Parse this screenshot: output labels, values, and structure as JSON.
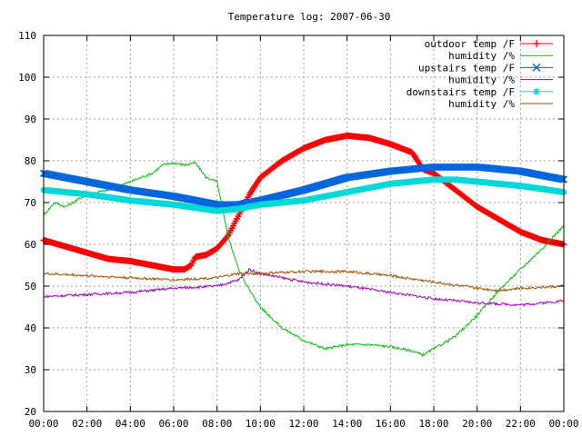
{
  "chart_data": {
    "type": "line",
    "title": "Temperature log: 2007-06-30",
    "xlabel": "",
    "ylabel": "",
    "ylim": [
      20,
      110
    ],
    "xlim_hours": [
      0,
      24
    ],
    "grid": true,
    "legend_position": "top-right",
    "y_ticks": [
      "20",
      "30",
      "40",
      "50",
      "60",
      "70",
      "80",
      "90",
      "100",
      "110"
    ],
    "x_ticks": [
      "00:00",
      "02:00",
      "04:00",
      "06:00",
      "08:00",
      "10:00",
      "12:00",
      "14:00",
      "16:00",
      "18:00",
      "20:00",
      "22:00",
      "00:00"
    ],
    "series": [
      {
        "name": "outdoor temp /F",
        "color": "#ff0000",
        "marker": "plus",
        "x": [
          0,
          1,
          2,
          3,
          4,
          5,
          6,
          6.5,
          6.8,
          7,
          7.5,
          8,
          8.5,
          9,
          9.5,
          10,
          11,
          12,
          13,
          14,
          15,
          16,
          17,
          17.5,
          18,
          19,
          20,
          21,
          22,
          23,
          24
        ],
        "y": [
          61,
          59.5,
          58,
          56.5,
          56,
          55,
          54,
          54,
          55,
          57,
          57.5,
          59,
          62,
          67,
          72,
          76,
          80,
          83,
          85,
          86,
          85.5,
          84,
          82,
          78,
          77,
          73,
          69,
          66,
          63,
          61,
          60
        ]
      },
      {
        "name": "humidity /%",
        "color": "#00c000",
        "marker": "none",
        "x": [
          0,
          0.5,
          1,
          2,
          3,
          4,
          5,
          5.5,
          6,
          6.5,
          7,
          7.5,
          8,
          8.5,
          9,
          9.5,
          10,
          11,
          12,
          13,
          14,
          15,
          16,
          17,
          17.5,
          18,
          19,
          20,
          21,
          22,
          23,
          24
        ],
        "y": [
          67,
          70,
          69,
          72,
          73,
          75,
          77,
          79,
          79.5,
          79,
          79.5,
          76,
          75,
          62,
          54,
          49,
          45,
          40,
          37,
          35,
          36,
          36,
          35.5,
          34.5,
          33.5,
          35,
          38,
          43,
          49,
          54,
          59,
          64.5
        ]
      },
      {
        "name": "upstairs temp /F",
        "color": "#0066dd",
        "marker": "cross",
        "x": [
          0,
          2,
          4,
          6,
          8,
          9,
          10,
          12,
          14,
          16,
          18,
          20,
          22,
          24
        ],
        "y": [
          77,
          75,
          73,
          71.5,
          69.5,
          69.5,
          70.5,
          73,
          76,
          77.5,
          78.5,
          78.5,
          77.5,
          75.5
        ]
      },
      {
        "name": "humidity /%",
        "color": "#a000c0",
        "marker": "none",
        "x": [
          0,
          2,
          4,
          6,
          8,
          9,
          9.5,
          10,
          12,
          14,
          16,
          18,
          20,
          22,
          24
        ],
        "y": [
          47.5,
          48,
          48.5,
          49.5,
          50,
          51.5,
          54,
          53,
          51,
          50,
          48.5,
          47,
          46,
          45.5,
          46.5
        ]
      },
      {
        "name": "downstairs temp /F",
        "color": "#00d8d8",
        "marker": "star",
        "x": [
          0,
          2,
          4,
          6,
          8,
          9,
          10,
          12,
          14,
          16,
          18,
          19,
          20,
          22,
          24
        ],
        "y": [
          73,
          72,
          70.5,
          69.5,
          68,
          68.5,
          69.5,
          70.5,
          72.5,
          74.5,
          75.5,
          75.5,
          75,
          74,
          72.5
        ]
      },
      {
        "name": "humidity /%",
        "color": "#a05000",
        "marker": "none",
        "x": [
          0,
          2,
          4,
          6,
          8,
          9,
          10,
          12,
          14,
          16,
          18,
          20,
          21,
          22,
          24
        ],
        "y": [
          53,
          52.5,
          52,
          51.5,
          52,
          53,
          53,
          53.5,
          53.5,
          52.5,
          51,
          49.5,
          49,
          49.5,
          50
        ]
      }
    ]
  }
}
